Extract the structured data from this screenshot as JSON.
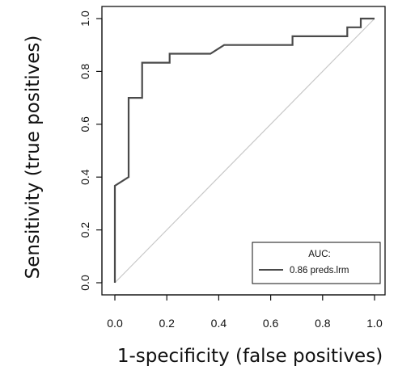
{
  "chart_data": {
    "type": "line",
    "title": "",
    "xlabel": "1-specificity (false positives)",
    "ylabel": "Sensitivity (true positives)",
    "xlim": [
      0,
      1
    ],
    "ylim": [
      0,
      1
    ],
    "xticks": [
      "0.0",
      "0.2",
      "0.4",
      "0.6",
      "0.8",
      "1.0"
    ],
    "yticks": [
      "0.0",
      "0.2",
      "0.4",
      "0.6",
      "0.8",
      "1.0"
    ],
    "grid": false,
    "legend": {
      "placement": "bottom-right",
      "title": "AUC:",
      "entries": [
        "0.86 preds.lrm"
      ]
    },
    "reference_line": {
      "from": [
        0,
        0
      ],
      "to": [
        1,
        1
      ],
      "color": "#c8c8c8"
    },
    "series": [
      {
        "name": "0.86 preds.lrm",
        "color": "#4a4a4a",
        "x": [
          0.0,
          0.0,
          0.053,
          0.053,
          0.053,
          0.105,
          0.105,
          0.211,
          0.211,
          0.368,
          0.421,
          0.684,
          0.684,
          0.895,
          0.895,
          0.947,
          0.947,
          1.0
        ],
        "y": [
          0.0,
          0.367,
          0.4,
          0.667,
          0.7,
          0.7,
          0.833,
          0.833,
          0.867,
          0.867,
          0.9,
          0.9,
          0.933,
          0.933,
          0.967,
          0.967,
          1.0,
          1.0
        ]
      }
    ]
  }
}
